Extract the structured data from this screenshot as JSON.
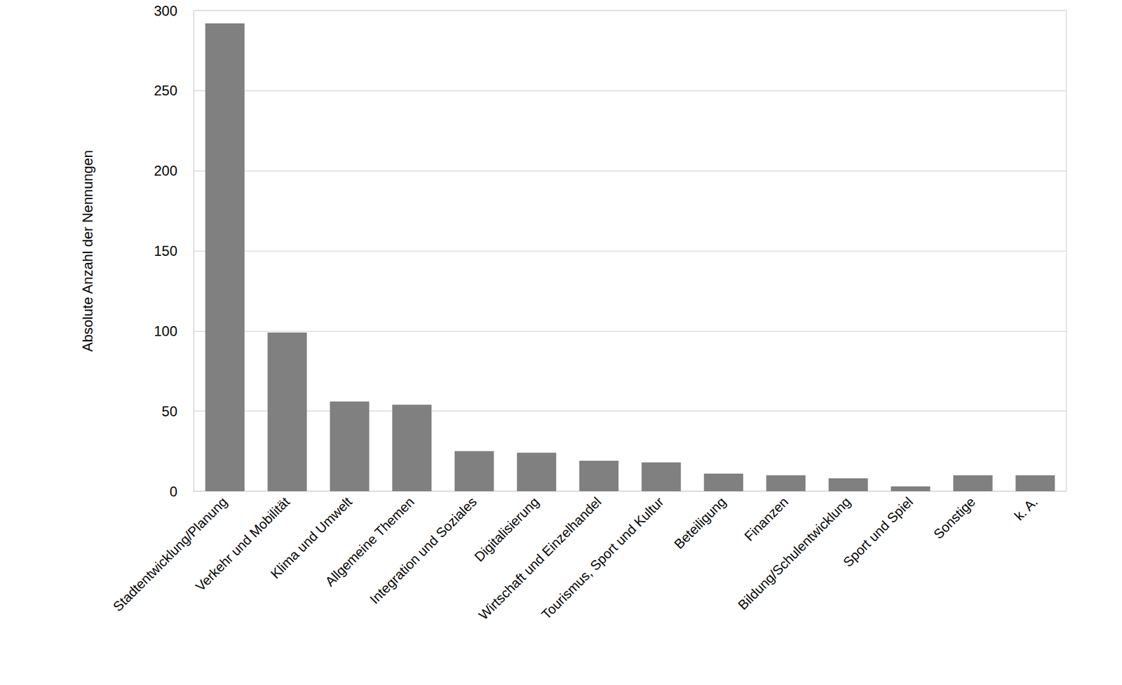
{
  "chart_data": {
    "type": "bar",
    "y_label": "Absolute Anzahl der Nennungen",
    "categories": [
      "Stadtentwicklung/Planung",
      "Verkehr und Mobilität",
      "Klima und Umwelt",
      "Allgemeine Themen",
      "Integration und Soziales",
      "Digitalisierung",
      "Wirtschaft und Einzelhandel",
      "Tourismus, Sport und Kultur",
      "Beteiligung",
      "Finanzen",
      "Bildung/Schulentwicklung",
      "Sport und Spiel",
      "Sonstige",
      "k. A."
    ],
    "values": [
      292,
      99,
      56,
      54,
      25,
      24,
      19,
      18,
      11,
      10,
      8,
      3,
      10,
      10
    ],
    "color": "#808080",
    "ylim": [
      0,
      300
    ],
    "yticks": [
      0,
      50,
      100,
      150,
      200,
      250,
      300
    ],
    "grid": true
  }
}
